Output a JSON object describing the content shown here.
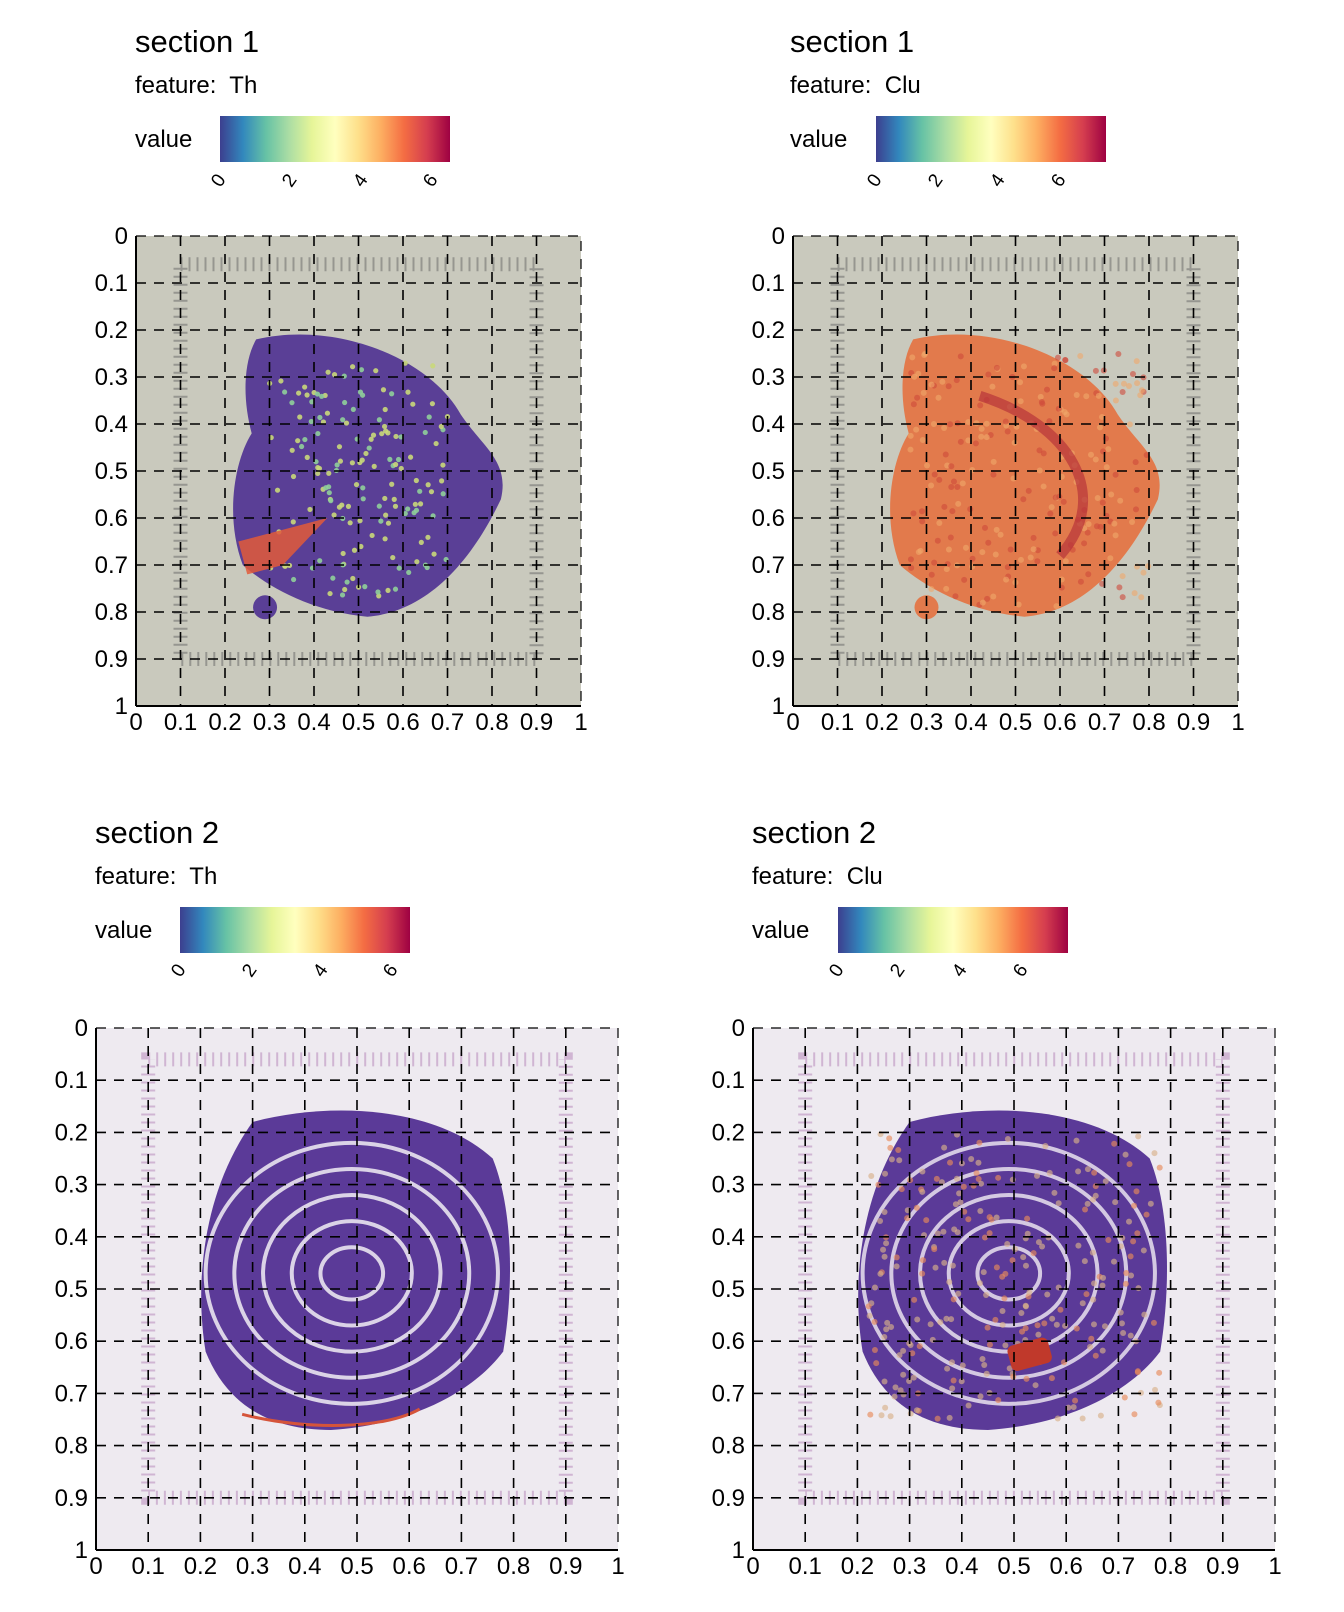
{
  "chart_data": [
    {
      "type": "heatmap",
      "title": "section 1",
      "feature_label": "feature:",
      "feature": "Th",
      "legend_title": "value",
      "colorbar_ticks": [
        "0",
        "2",
        "4",
        "6"
      ],
      "colorbar_range": [
        0,
        6.5
      ],
      "colormap": [
        "#3c3f8f",
        "#3288bd",
        "#66c2a5",
        "#abdda4",
        "#e6f598",
        "#ffffbf",
        "#fee08b",
        "#fdae61",
        "#f46d43",
        "#d53e4f",
        "#9e0142"
      ],
      "x_ticks": [
        "0",
        "0.1",
        "0.2",
        "0.3",
        "0.4",
        "0.5",
        "0.6",
        "0.7",
        "0.8",
        "0.9",
        "1"
      ],
      "y_ticks": [
        "0",
        "0.1",
        "0.2",
        "0.3",
        "0.4",
        "0.5",
        "0.6",
        "0.7",
        "0.8",
        "0.9",
        "1"
      ],
      "xlim": [
        0,
        1
      ],
      "ylim": [
        0,
        1
      ],
      "grid": true,
      "background_color": "#c9c9bd",
      "tissue_color": "#5a3f96",
      "fiducial_color": "#8a8a85",
      "hotspot_color": "#e25a3a"
    },
    {
      "type": "heatmap",
      "title": "section 1",
      "feature_label": "feature:",
      "feature": "Clu",
      "legend_title": "value",
      "colorbar_ticks": [
        "0",
        "2",
        "4",
        "6"
      ],
      "colorbar_range": [
        0,
        7.5
      ],
      "colormap": [
        "#3c3f8f",
        "#3288bd",
        "#66c2a5",
        "#abdda4",
        "#e6f598",
        "#ffffbf",
        "#fee08b",
        "#fdae61",
        "#f46d43",
        "#d53e4f",
        "#9e0142"
      ],
      "x_ticks": [
        "0",
        "0.1",
        "0.2",
        "0.3",
        "0.4",
        "0.5",
        "0.6",
        "0.7",
        "0.8",
        "0.9",
        "1"
      ],
      "y_ticks": [
        "0",
        "0.1",
        "0.2",
        "0.3",
        "0.4",
        "0.5",
        "0.6",
        "0.7",
        "0.8",
        "0.9",
        "1"
      ],
      "xlim": [
        0,
        1
      ],
      "ylim": [
        0,
        1
      ],
      "grid": true,
      "background_color": "#c9c9bd",
      "tissue_color": "#e27a4c",
      "fiducial_color": "#8a8a85",
      "hotspot_color": "#c9423a"
    },
    {
      "type": "heatmap",
      "title": "section 2",
      "feature_label": "feature:",
      "feature": "Th",
      "legend_title": "value",
      "colorbar_ticks": [
        "0",
        "2",
        "4",
        "6"
      ],
      "colorbar_range": [
        0,
        6.5
      ],
      "colormap": [
        "#3c3f8f",
        "#3288bd",
        "#66c2a5",
        "#abdda4",
        "#e6f598",
        "#ffffbf",
        "#fee08b",
        "#fdae61",
        "#f46d43",
        "#d53e4f",
        "#9e0142"
      ],
      "x_ticks": [
        "0",
        "0.1",
        "0.2",
        "0.3",
        "0.4",
        "0.5",
        "0.6",
        "0.7",
        "0.8",
        "0.9",
        "1"
      ],
      "y_ticks": [
        "0",
        "0.1",
        "0.2",
        "0.3",
        "0.4",
        "0.5",
        "0.6",
        "0.7",
        "0.8",
        "0.9",
        "1"
      ],
      "xlim": [
        0,
        1
      ],
      "ylim": [
        0,
        1
      ],
      "grid": true,
      "background_color": "#eeeaf0",
      "tissue_color": "#5b3a98",
      "fiducial_color": "#c8a8cc",
      "hotspot_color": "#d5543a"
    },
    {
      "type": "heatmap",
      "title": "section 2",
      "feature_label": "feature:",
      "feature": "Clu",
      "legend_title": "value",
      "colorbar_ticks": [
        "0",
        "2",
        "4",
        "6"
      ],
      "colorbar_range": [
        0,
        7.5
      ],
      "colormap": [
        "#3c3f8f",
        "#3288bd",
        "#66c2a5",
        "#abdda4",
        "#e6f598",
        "#ffffbf",
        "#fee08b",
        "#fdae61",
        "#f46d43",
        "#d53e4f",
        "#9e0142"
      ],
      "x_ticks": [
        "0",
        "0.1",
        "0.2",
        "0.3",
        "0.4",
        "0.5",
        "0.6",
        "0.7",
        "0.8",
        "0.9",
        "1"
      ],
      "y_ticks": [
        "0",
        "0.1",
        "0.2",
        "0.3",
        "0.4",
        "0.5",
        "0.6",
        "0.7",
        "0.8",
        "0.9",
        "1"
      ],
      "xlim": [
        0,
        1
      ],
      "ylim": [
        0,
        1
      ],
      "grid": true,
      "background_color": "#eeeaf0",
      "tissue_color": "#5b3a98",
      "fiducial_color": "#c8a8cc",
      "hotspot_color": "#d8b08a"
    }
  ]
}
